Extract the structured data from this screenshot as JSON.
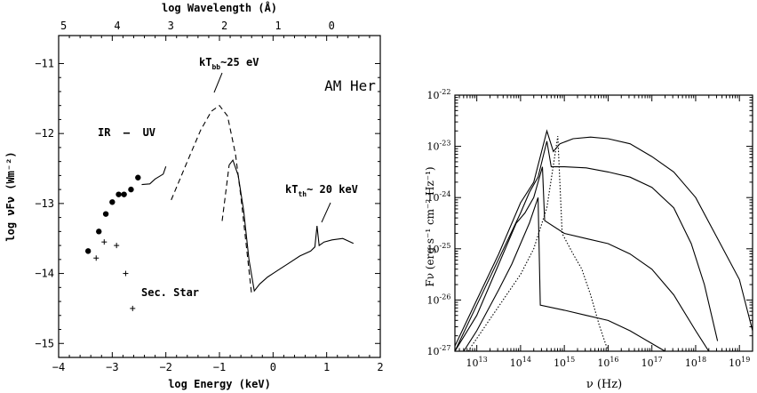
{
  "chart_data": [
    {
      "type": "line",
      "title": "AM Her",
      "xlabel": "log Energy (keV)",
      "x2label": "log Wavelength (Å)",
      "ylabel": "log νFν (Wm⁻²)",
      "xlim": [
        -4,
        2
      ],
      "ylim": [
        -15.2,
        -10.6
      ],
      "xticks": [
        "−4",
        "−3",
        "−2",
        "−1",
        "0",
        "1",
        "2"
      ],
      "x2ticks": [
        "5",
        "4",
        "3",
        "2",
        "1",
        "0"
      ],
      "yticks": [
        "−11",
        "−12",
        "−13",
        "−14",
        "−15"
      ],
      "annotations": {
        "ir_uv": "IR  –  UV",
        "kt_bb_main": "kT",
        "kt_bb_sub": "bb",
        "kt_bb_tail": "~25 eV",
        "kt_th_main": "kT",
        "kt_th_sub": "th",
        "kt_th_tail": "~ 20 keV",
        "sec_star": "Sec. Star"
      },
      "series": [
        {
          "style": "filled-circles",
          "x": [
            -3.45,
            -3.25,
            -3.12,
            -3.0,
            -2.88,
            -2.78,
            -2.65,
            -2.52
          ],
          "y": [
            -13.68,
            -13.4,
            -13.15,
            -12.98,
            -12.87,
            -12.87,
            -12.8,
            -12.63
          ]
        },
        {
          "style": "plus",
          "x": [
            -3.3,
            -3.15,
            -2.92,
            -2.75,
            -2.62
          ],
          "y": [
            -13.78,
            -13.55,
            -13.6,
            -14.0,
            -14.5
          ]
        },
        {
          "style": "solid",
          "x": [
            -2.45,
            -2.3,
            -2.2,
            -2.05,
            -2.0
          ],
          "y": [
            -12.73,
            -12.72,
            -12.65,
            -12.58,
            -12.47
          ]
        },
        {
          "style": "dashed",
          "x": [
            -1.9,
            -1.6,
            -1.35,
            -1.15,
            -1.0,
            -0.85,
            -0.7,
            -0.6,
            -0.5,
            -0.4
          ],
          "y": [
            -12.95,
            -12.4,
            -11.95,
            -11.68,
            -11.6,
            -11.75,
            -12.3,
            -12.9,
            -13.6,
            -14.3
          ]
        },
        {
          "style": "dashed",
          "x": [
            -0.95,
            -0.9,
            -0.82
          ],
          "y": [
            -13.25,
            -12.95,
            -12.45
          ]
        },
        {
          "style": "solid",
          "x": [
            -0.82,
            -0.75,
            -0.65,
            -0.55,
            -0.45,
            -0.35,
            -0.25,
            -0.1,
            0.0,
            0.1,
            0.3,
            0.5,
            0.7,
            0.78,
            0.82,
            0.86,
            0.95,
            1.1,
            1.3,
            1.5
          ],
          "y": [
            -12.45,
            -12.38,
            -12.6,
            -13.1,
            -13.8,
            -14.25,
            -14.15,
            -14.05,
            -14.0,
            -13.95,
            -13.85,
            -13.75,
            -13.68,
            -13.62,
            -13.32,
            -13.6,
            -13.55,
            -13.52,
            -13.5,
            -13.57
          ]
        }
      ]
    },
    {
      "type": "line",
      "xlabel": "ν (Hz)",
      "ylabel": "Fν (erg s⁻¹ cm⁻² Hz⁻¹)",
      "xscale": "log",
      "yscale": "log",
      "xlim": [
        12.5,
        19.3
      ],
      "ylim": [
        -27,
        -22
      ],
      "xticks": [
        "13",
        "14",
        "15",
        "16",
        "17",
        "18",
        "19"
      ],
      "yticks": [
        "-22",
        "-23",
        "-24",
        "-25",
        "-26",
        "-27"
      ],
      "series": [
        {
          "style": "solid",
          "x": [
            12.5,
            13.0,
            13.5,
            14.0,
            14.3,
            14.6,
            14.75,
            14.9,
            15.2,
            15.6,
            16.0,
            16.5,
            17.0,
            17.5,
            18.0,
            18.5,
            19.0,
            19.3
          ],
          "y": [
            -26.9,
            -26.0,
            -25.1,
            -24.1,
            -23.7,
            -22.7,
            -23.1,
            -22.95,
            -22.85,
            -22.82,
            -22.85,
            -22.95,
            -23.2,
            -23.5,
            -24.0,
            -24.8,
            -25.6,
            -26.6
          ]
        },
        {
          "style": "solid",
          "x": [
            12.5,
            13.0,
            13.5,
            14.0,
            14.2,
            14.4,
            14.6,
            14.7,
            15.0,
            15.5,
            16.0,
            16.5,
            17.0,
            17.5,
            17.9,
            18.2,
            18.5
          ],
          "y": [
            -27.0,
            -26.1,
            -25.2,
            -24.3,
            -23.9,
            -23.6,
            -22.9,
            -23.4,
            -23.4,
            -23.42,
            -23.5,
            -23.6,
            -23.8,
            -24.2,
            -24.9,
            -25.7,
            -26.8
          ]
        },
        {
          "style": "solid",
          "x": [
            12.5,
            13.0,
            13.5,
            13.9,
            14.1,
            14.3,
            14.5,
            14.55,
            15.0,
            15.5,
            16.0,
            16.5,
            17.0,
            17.5,
            18.0,
            18.3
          ],
          "y": [
            -27.0,
            -26.3,
            -25.3,
            -24.5,
            -24.3,
            -24.0,
            -23.4,
            -24.45,
            -24.7,
            -24.8,
            -24.9,
            -25.1,
            -25.4,
            -25.9,
            -26.6,
            -27.0
          ]
        },
        {
          "style": "solid",
          "x": [
            12.7,
            13.0,
            13.5,
            13.8,
            14.0,
            14.2,
            14.4,
            14.45,
            15.0,
            15.5,
            16.0,
            16.5,
            17.0,
            17.3
          ],
          "y": [
            -27.0,
            -26.6,
            -25.8,
            -25.3,
            -24.9,
            -24.5,
            -24.0,
            -26.1,
            -26.2,
            -26.3,
            -26.4,
            -26.6,
            -26.85,
            -27.0
          ]
        },
        {
          "style": "dotted",
          "x": [
            12.8,
            13.2,
            13.6,
            14.0,
            14.3,
            14.6,
            14.85,
            14.95,
            15.2,
            15.4,
            15.6,
            15.8,
            16.0
          ],
          "y": [
            -27.0,
            -26.5,
            -26.0,
            -25.5,
            -25.0,
            -24.2,
            -22.8,
            -24.7,
            -25.1,
            -25.4,
            -25.9,
            -26.5,
            -27.0
          ]
        }
      ]
    }
  ]
}
